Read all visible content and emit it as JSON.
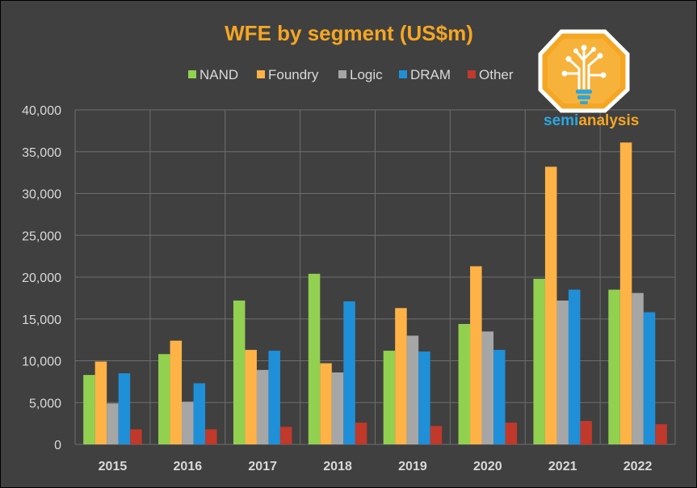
{
  "chart_data": {
    "type": "bar",
    "title": "WFE by segment (US$m)",
    "categories": [
      "2015",
      "2016",
      "2017",
      "2018",
      "2019",
      "2020",
      "2021",
      "2022"
    ],
    "series": [
      {
        "name": "NAND",
        "color": "#92d050",
        "values": [
          8300,
          10800,
          17200,
          20400,
          11200,
          14400,
          19800,
          18500
        ]
      },
      {
        "name": "Foundry",
        "color": "#ffb347",
        "values": [
          9900,
          12400,
          11300,
          9700,
          16300,
          21300,
          33200,
          36100
        ]
      },
      {
        "name": "Logic",
        "color": "#a6a6a6",
        "values": [
          4900,
          5100,
          8900,
          8600,
          13000,
          13500,
          17200,
          18100
        ]
      },
      {
        "name": "DRAM",
        "color": "#1f8fd8",
        "values": [
          8500,
          7300,
          11200,
          17100,
          11100,
          11300,
          18500,
          15800
        ]
      },
      {
        "name": "Other",
        "color": "#c0392b",
        "values": [
          1800,
          1800,
          2100,
          2600,
          2200,
          2600,
          2800,
          2400
        ]
      }
    ],
    "ylim": [
      0,
      40000
    ],
    "yticks": [
      "0",
      "5,000",
      "10,000",
      "15,000",
      "20,000",
      "25,000",
      "30,000",
      "35,000",
      "40,000"
    ],
    "grid": true,
    "legend_position": "top"
  },
  "colors": {
    "background": "#404040",
    "title": "#f5a623",
    "text": "#d9d9d9",
    "grid": "#6e6e6e"
  },
  "logo": {
    "word_part1": "semi",
    "word_part2": "analysis",
    "icon": "tree-lightbulb-icon"
  }
}
